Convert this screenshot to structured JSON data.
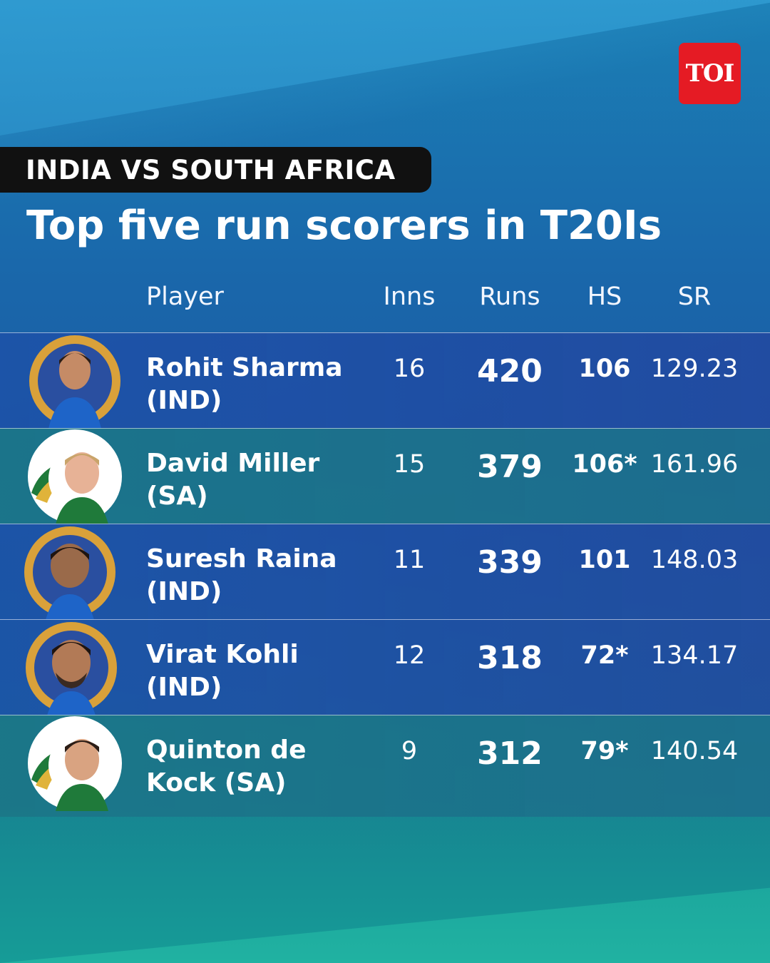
{
  "brand": {
    "logo": "TOI",
    "logo_color": "#e51b24"
  },
  "tag": "INDIA VS SOUTH AFRICA",
  "title": "Top five run scorers in T20Is",
  "chart_data": {
    "type": "table",
    "columns": [
      "Player",
      "Inns",
      "Runs",
      "HS",
      "SR"
    ],
    "rows": [
      {
        "player": "Rohit Sharma (IND)",
        "team": "IND",
        "inns": "16",
        "runs": "420",
        "hs": "106",
        "sr": "129.23"
      },
      {
        "player": "David Miller (SA)",
        "team": "SA",
        "inns": "15",
        "runs": "379",
        "hs": "106*",
        "sr": "161.96"
      },
      {
        "player": "Suresh Raina (IND)",
        "team": "IND",
        "inns": "11",
        "runs": "339",
        "hs": "101",
        "sr": "148.03"
      },
      {
        "player": "Virat Kohli (IND)",
        "team": "IND",
        "inns": "12",
        "runs": "318",
        "hs": "72*",
        "sr": "134.17"
      },
      {
        "player": "Quinton de Kock (SA)",
        "team": "SA",
        "inns": "9",
        "runs": "312",
        "hs": "79*",
        "sr": "140.54"
      }
    ]
  },
  "icons": {
    "ind": "bcci-crest-photo",
    "sa": "cricket-south-africa-logo-photo"
  },
  "colors": {
    "ind_row": "#1f52a8",
    "sa_row": "#1b7688",
    "accent_gold": "#d9a13a",
    "sa_green": "#1f7a3a"
  }
}
